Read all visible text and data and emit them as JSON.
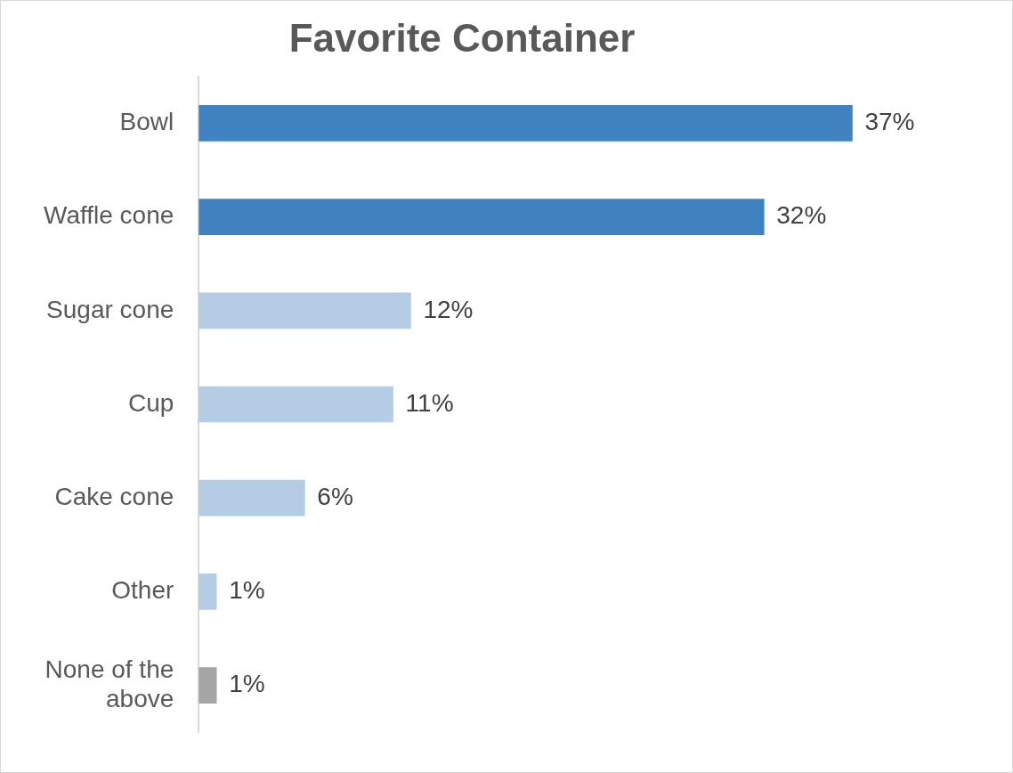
{
  "chart_data": {
    "type": "bar",
    "orientation": "horizontal",
    "title": "Favorite Container",
    "categories": [
      "Bowl",
      "Waffle cone",
      "Sugar cone",
      "Cup",
      "Cake cone",
      "Other",
      "None of the above"
    ],
    "values": [
      37,
      32,
      12,
      11,
      6,
      1,
      1
    ],
    "colors": [
      "#4082c0",
      "#4082c0",
      "#b4cde4",
      "#b4cde4",
      "#b4cde4",
      "#b4cde4",
      "#a5a5a5"
    ],
    "value_labels": [
      "37%",
      "32%",
      "12%",
      "11%",
      "6%",
      "1%",
      "1%"
    ],
    "legend": false
  }
}
